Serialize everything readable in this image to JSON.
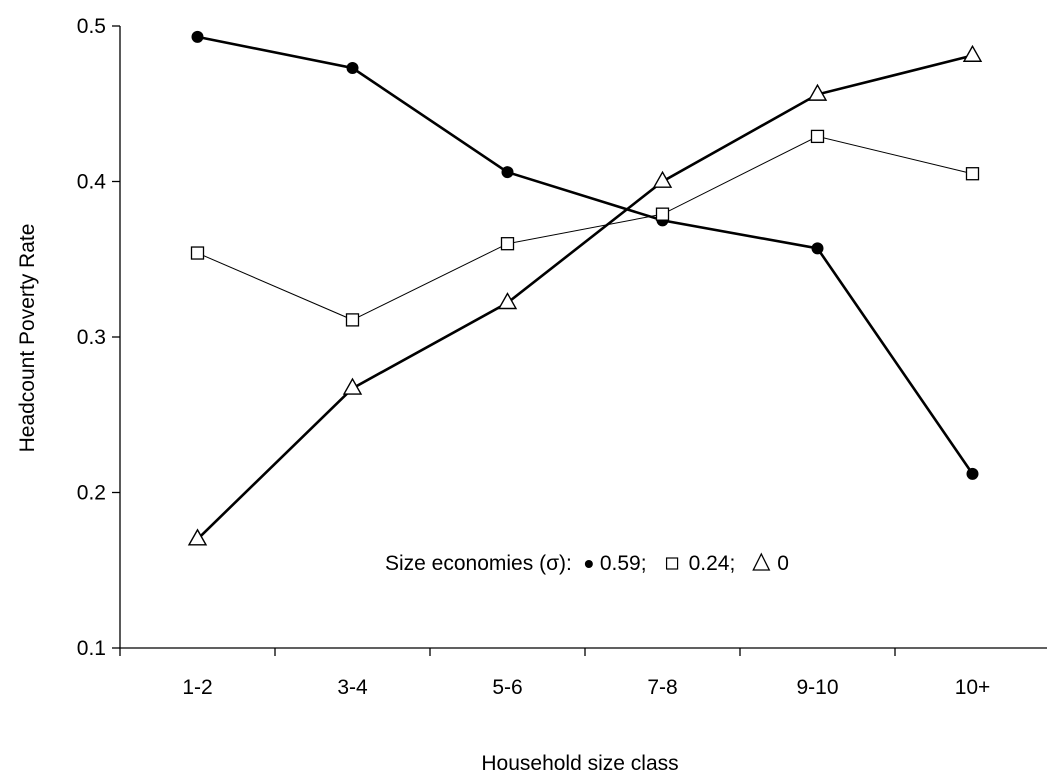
{
  "chart_data": {
    "type": "line",
    "title": "",
    "xlabel": "Household size class",
    "ylabel": "Headcount Poverty Rate",
    "categories": [
      "1-2",
      "3-4",
      "5-6",
      "7-8",
      "9-10",
      "10+"
    ],
    "ylim": [
      0.1,
      0.5
    ],
    "yticks": [
      "0.1",
      "0.2",
      "0.3",
      "0.4",
      "0.5"
    ],
    "grid": false,
    "series": [
      {
        "marker": "filled-circle",
        "line": "thick",
        "values": [
          0.493,
          0.473,
          0.406,
          0.375,
          0.357,
          0.212
        ]
      },
      {
        "marker": "open-square",
        "line": "thin",
        "values": [
          0.354,
          0.311,
          0.36,
          0.379,
          0.429,
          0.405
        ]
      },
      {
        "marker": "open-triangle",
        "line": "thick",
        "values": [
          0.17,
          0.267,
          0.322,
          0.4,
          0.456,
          0.481
        ]
      }
    ],
    "annotation": {
      "prefix": "Size economies (σ):",
      "items": [
        {
          "marker": "filled-circle",
          "label": "0.59;"
        },
        {
          "marker": "open-square",
          "label": "0.24;"
        },
        {
          "marker": "open-triangle",
          "label": "0"
        }
      ]
    },
    "colors": {
      "line": "#000000",
      "background": "#ffffff"
    }
  }
}
